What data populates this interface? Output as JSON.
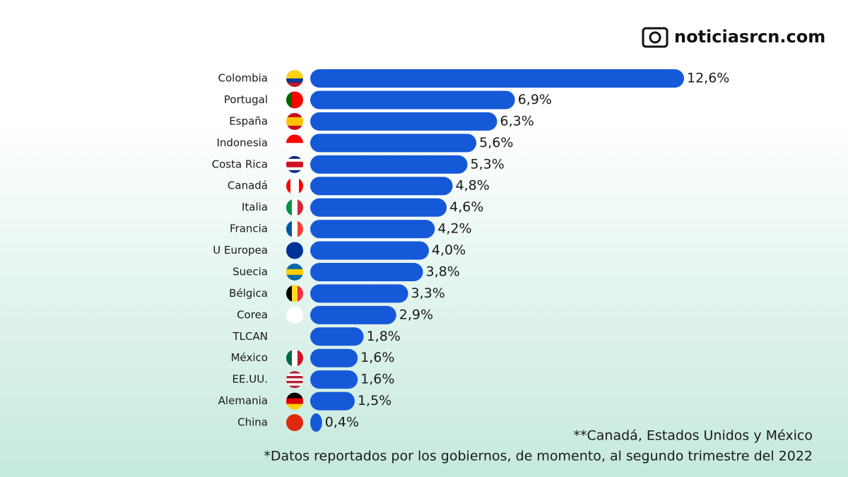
{
  "chart_data": {
    "type": "bar",
    "orientation": "horizontal",
    "brand": "noticiasrcn.com",
    "categories": [
      "Colombia",
      "Portugal",
      "España",
      "Indonesia",
      "Costa Rica",
      "Canadá",
      "Italia",
      "Francia",
      "U Europea",
      "Suecia",
      "Bélgica",
      "Corea",
      "TLCAN",
      "México",
      "EE.UU.",
      "Alemania",
      "China"
    ],
    "values": [
      12.6,
      6.9,
      6.3,
      5.6,
      5.3,
      4.8,
      4.6,
      4.2,
      4.0,
      3.8,
      3.3,
      2.9,
      1.8,
      1.6,
      1.6,
      1.5,
      0.4
    ],
    "value_labels": [
      "12,6%",
      "6,9%",
      "6,3%",
      "5,6%",
      "5,3%",
      "4,8%",
      "4,6%",
      "4,2%",
      "4,0%",
      "3,8%",
      "3,3%",
      "2,9%",
      "1,8%",
      "1,6%",
      "1,6%",
      "1,5%",
      "0,4%"
    ],
    "color": "#1659d8",
    "notes": [
      "**Canadá, Estados Unidos y México",
      "*Datos reportados por los gobiernos, de momento,  al segundo trimestre del 2022"
    ]
  }
}
